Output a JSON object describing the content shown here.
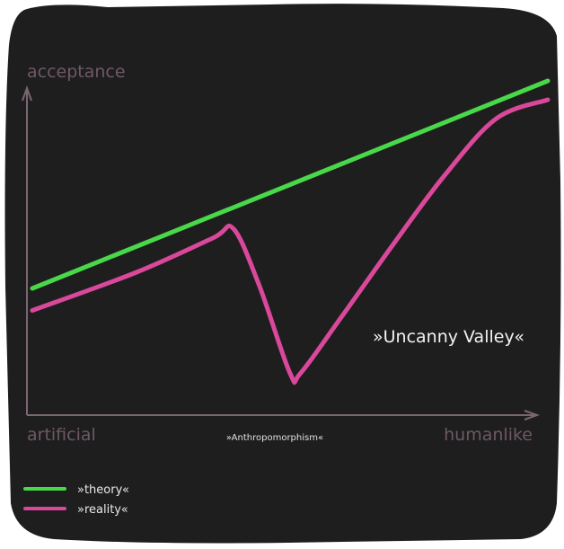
{
  "colors": {
    "background": "#1e1e1e",
    "axis": "#7a6672",
    "theory": "#48d84a",
    "reality": "#d9489a"
  },
  "chart_data": {
    "type": "line",
    "xlabel": "»Anthropomorphism«",
    "ylabel": "acceptance",
    "x_start_label": "artificial",
    "x_end_label": "humanlike",
    "annotation": "»Uncanny Valley«",
    "xlim": [
      0,
      100
    ],
    "ylim": [
      0,
      100
    ],
    "grid": false,
    "legend_position": "bottom-left",
    "series": [
      {
        "name": "»theory«",
        "color": "#48d84a",
        "x": [
          0,
          100
        ],
        "y": [
          34,
          100
        ]
      },
      {
        "name": "»reality«",
        "color": "#d9489a",
        "x": [
          0,
          20,
          35,
          39,
          44,
          50,
          52,
          60,
          70,
          80,
          90,
          100
        ],
        "y": [
          27,
          39,
          50,
          53,
          35,
          7,
          7,
          25,
          48,
          70,
          88,
          94
        ]
      }
    ]
  }
}
